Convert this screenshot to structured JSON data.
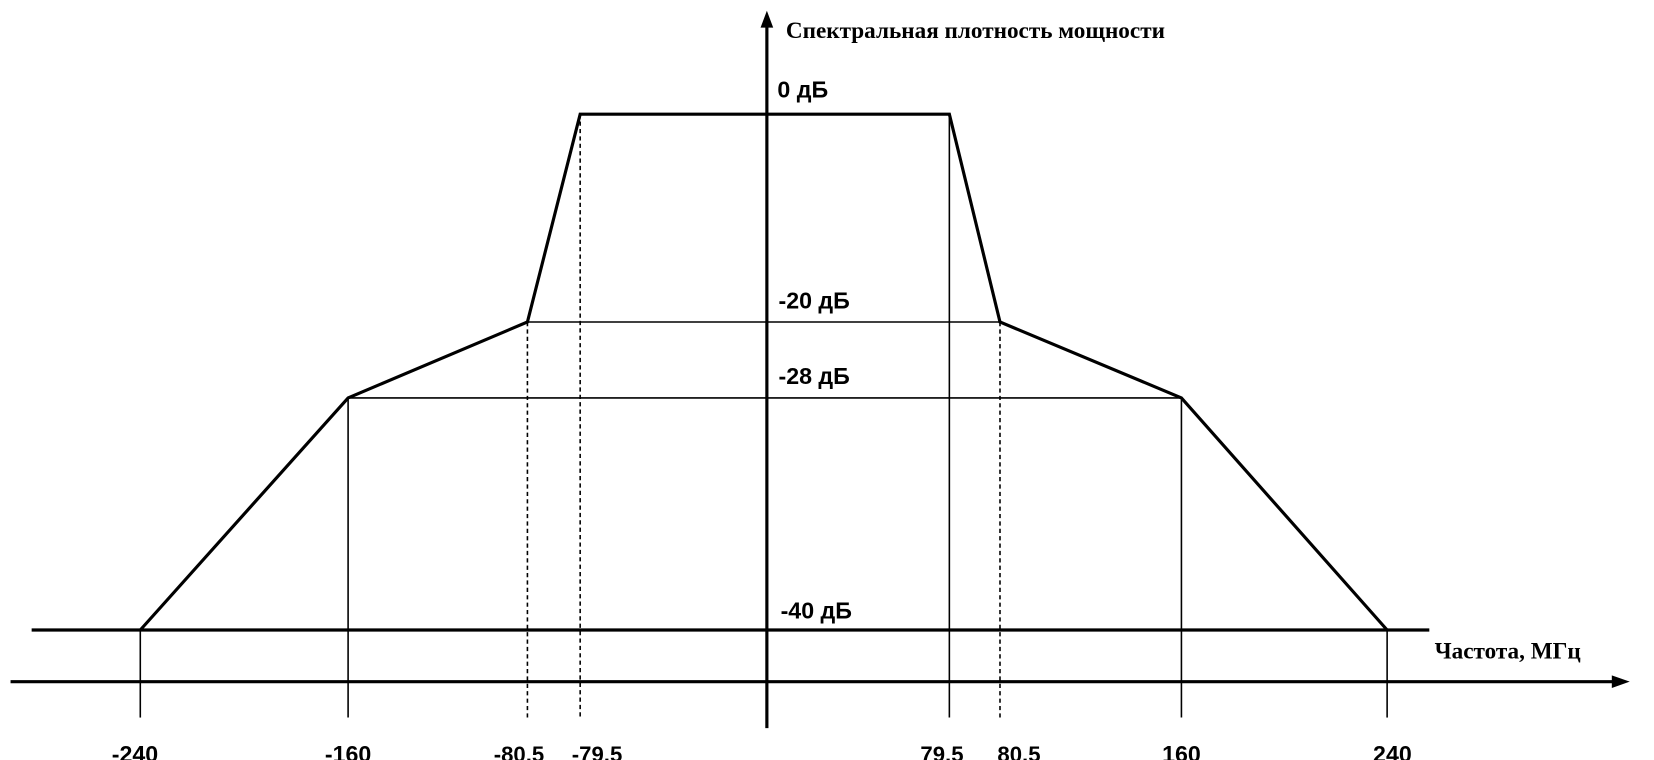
{
  "y_axis_label": "Спектральная плотность мощности",
  "x_axis_label": "Частота, МГц",
  "levels": [
    "0 дБ",
    "-20 дБ",
    "-28 дБ",
    "-40 дБ"
  ],
  "frequencies": [
    "-240",
    "-160",
    "-80,5",
    "-79,5",
    "79,5",
    "80,5",
    "160",
    "240"
  ]
}
